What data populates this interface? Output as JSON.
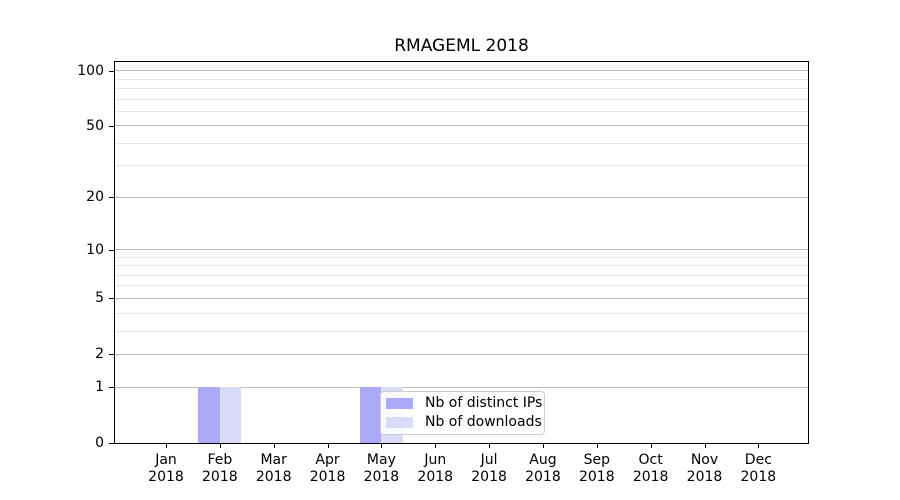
{
  "chart_data": {
    "type": "bar",
    "title": "RMAGEML 2018",
    "categories": [
      "Jan 2018",
      "Feb 2018",
      "Mar 2018",
      "Apr 2018",
      "May 2018",
      "Jun 2018",
      "Jul 2018",
      "Aug 2018",
      "Sep 2018",
      "Oct 2018",
      "Nov 2018",
      "Dec 2018"
    ],
    "x_tick_months": [
      "Jan",
      "Feb",
      "Mar",
      "Apr",
      "May",
      "Jun",
      "Jul",
      "Aug",
      "Sep",
      "Oct",
      "Nov",
      "Dec"
    ],
    "x_tick_year": "2018",
    "series": [
      {
        "name": "Nb of distinct IPs",
        "color": "#aaaaf8",
        "values": [
          0,
          1,
          0,
          0,
          1,
          0,
          0,
          0,
          0,
          0,
          0,
          0
        ]
      },
      {
        "name": "Nb of downloads",
        "color": "#dadaf9",
        "values": [
          0,
          1,
          0,
          0,
          1,
          0,
          0,
          0,
          0,
          0,
          0,
          0
        ]
      }
    ],
    "yscale": "log1p",
    "yticks": [
      0,
      1,
      2,
      5,
      10,
      20,
      50,
      100
    ],
    "y_minor_ticks": [
      3,
      4,
      6,
      7,
      8,
      9,
      30,
      40,
      60,
      70,
      80,
      90
    ],
    "ylim": [
      0,
      112
    ],
    "grid": {
      "horizontal": true,
      "vertical": false,
      "major_color": "#bdbdbd",
      "minor_color": "#e8e8e8"
    },
    "legend_position": "inside lower middle"
  },
  "colors": {
    "background": "#ffffff",
    "bar_distinct_ips": "#aaaaf8",
    "bar_downloads": "#dadaf9",
    "axis": "#000000",
    "text": "#000000"
  }
}
